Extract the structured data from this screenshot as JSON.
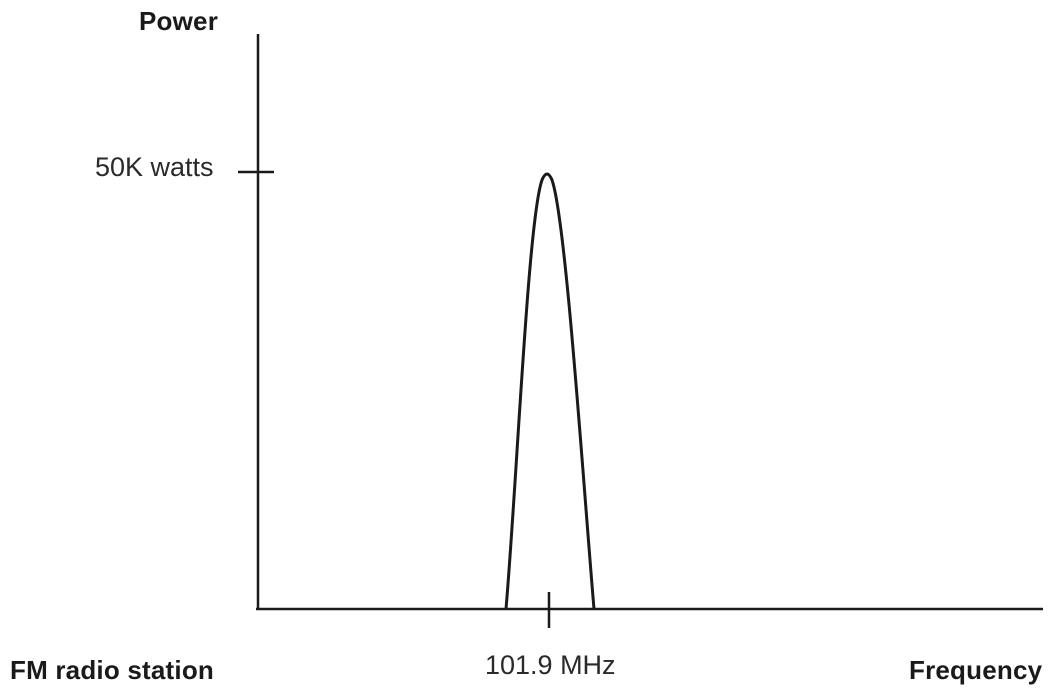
{
  "figure": {
    "y_axis_title": "Power",
    "x_axis_title": "Frequency",
    "y_tick_label": "50K watts",
    "x_tick_label": "101.9 MHz",
    "corner_label": "FM radio station"
  },
  "signal": {
    "center": "101.9 MHz",
    "peak_power": "50K watts",
    "shape": "narrow-peak"
  },
  "colors": {
    "line": "#1a1a1a",
    "background": "#ffffff"
  }
}
